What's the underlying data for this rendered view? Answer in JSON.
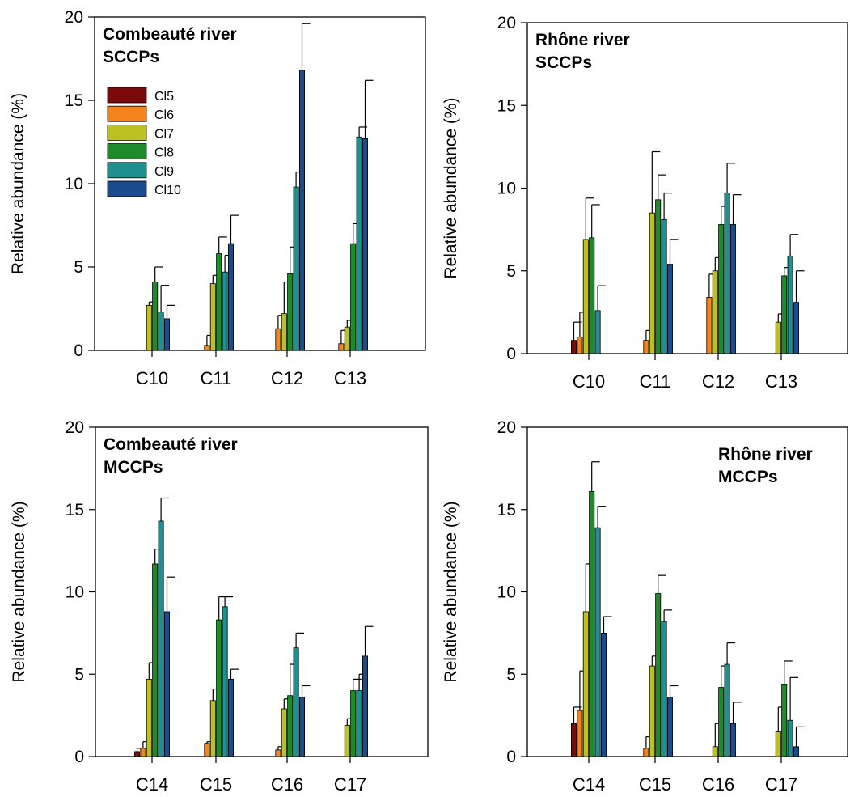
{
  "figure": {
    "legend": [
      {
        "name": "Cl5",
        "color": "#7b0a0a"
      },
      {
        "name": "Cl6",
        "color": "#f5841f"
      },
      {
        "name": "Cl7",
        "color": "#bcc123"
      },
      {
        "name": "Cl8",
        "color": "#1e8b2a"
      },
      {
        "name": "Cl9",
        "color": "#1f8f8f"
      },
      {
        "name": "Cl10",
        "color": "#1a4b8f"
      }
    ]
  },
  "chart_data": [
    {
      "type": "bar",
      "title": "Combeauté river\nSCCPs",
      "title_lines": [
        "Combeauté river",
        "SCCPs"
      ],
      "ylabel": "Relative abundance (%)",
      "xlabel": "",
      "ylim": [
        0,
        20
      ],
      "yticks": [
        "0",
        "5",
        "10",
        "15",
        "20"
      ],
      "legend": "top-left",
      "categories": [
        "C10",
        "C11",
        "C12",
        "C13"
      ],
      "series": [
        {
          "name": "Cl5",
          "values": [
            0,
            0,
            0,
            0
          ],
          "errors": [
            0,
            0,
            0,
            0
          ]
        },
        {
          "name": "Cl6",
          "values": [
            0,
            0.3,
            1.3,
            0.4
          ],
          "errors": [
            0,
            0.6,
            0.8,
            0.8
          ]
        },
        {
          "name": "Cl7",
          "values": [
            2.7,
            4.0,
            2.2,
            1.4
          ],
          "errors": [
            0.2,
            0.5,
            1.9,
            0.4
          ]
        },
        {
          "name": "Cl8",
          "values": [
            4.1,
            5.8,
            4.6,
            6.4
          ],
          "errors": [
            0.9,
            1.0,
            1.6,
            1.2
          ]
        },
        {
          "name": "Cl9",
          "values": [
            2.3,
            4.7,
            9.8,
            12.8
          ],
          "errors": [
            1.6,
            1.0,
            0.9,
            0.6
          ]
        },
        {
          "name": "Cl10",
          "values": [
            1.9,
            6.4,
            16.8,
            12.7
          ],
          "errors": [
            0.8,
            1.7,
            2.8,
            3.5
          ]
        }
      ]
    },
    {
      "type": "bar",
      "title": "Rhône river\nSCCPs",
      "title_lines": [
        "Rhône river",
        "SCCPs"
      ],
      "ylabel": "Relative abundance (%)",
      "xlabel": "",
      "ylim": [
        0,
        20
      ],
      "yticks": [
        "0",
        "5",
        "10",
        "15",
        "20"
      ],
      "categories": [
        "C10",
        "C11",
        "C12",
        "C13"
      ],
      "series": [
        {
          "name": "Cl5",
          "values": [
            0.8,
            0,
            0,
            0
          ],
          "errors": [
            1.1,
            0,
            0,
            0
          ]
        },
        {
          "name": "Cl6",
          "values": [
            1.0,
            0.8,
            3.4,
            0
          ],
          "errors": [
            1.5,
            0.6,
            1.4,
            0
          ]
        },
        {
          "name": "Cl7",
          "values": [
            6.9,
            8.5,
            5.0,
            1.9
          ],
          "errors": [
            2.5,
            3.7,
            0.8,
            0.5
          ]
        },
        {
          "name": "Cl8",
          "values": [
            7.0,
            9.3,
            7.8,
            4.7
          ],
          "errors": [
            2.0,
            1.5,
            1.1,
            0.5
          ]
        },
        {
          "name": "Cl9",
          "values": [
            2.6,
            8.1,
            9.7,
            5.9
          ],
          "errors": [
            1.5,
            1.6,
            1.8,
            1.3
          ]
        },
        {
          "name": "Cl10",
          "values": [
            0,
            5.4,
            7.8,
            3.1
          ],
          "errors": [
            0,
            1.5,
            1.8,
            1.9
          ]
        }
      ]
    },
    {
      "type": "bar",
      "title": "Combeauté river\nMCCPs",
      "title_lines": [
        "Combeauté river",
        "MCCPs"
      ],
      "ylabel": "Relative abundance (%)",
      "xlabel": "",
      "ylim": [
        0,
        20
      ],
      "yticks": [
        "0",
        "5",
        "10",
        "15",
        "20"
      ],
      "categories": [
        "C14",
        "C15",
        "C16",
        "C17"
      ],
      "series": [
        {
          "name": "Cl5",
          "values": [
            0.3,
            0,
            0,
            0
          ],
          "errors": [
            0.2,
            0,
            0,
            0
          ]
        },
        {
          "name": "Cl6",
          "values": [
            0.5,
            0.8,
            0.4,
            0
          ],
          "errors": [
            0.4,
            0.1,
            0.2,
            0
          ]
        },
        {
          "name": "Cl7",
          "values": [
            4.7,
            3.4,
            2.9,
            1.9
          ],
          "errors": [
            1.0,
            0.7,
            0.6,
            0.4
          ]
        },
        {
          "name": "Cl8",
          "values": [
            11.7,
            8.3,
            3.7,
            4.0
          ],
          "errors": [
            0.9,
            1.4,
            1.9,
            0.7
          ]
        },
        {
          "name": "Cl9",
          "values": [
            14.3,
            9.1,
            6.6,
            4.0
          ],
          "errors": [
            1.4,
            0.6,
            0.9,
            1.0
          ]
        },
        {
          "name": "Cl10",
          "values": [
            8.8,
            4.7,
            3.6,
            6.1
          ],
          "errors": [
            2.1,
            0.6,
            0.7,
            1.8
          ]
        }
      ]
    },
    {
      "type": "bar",
      "title": "Rhône river\nMCCPs",
      "title_lines": [
        "Rhône river",
        "MCCPs"
      ],
      "ylabel": "Relative abundance (%)",
      "xlabel": "",
      "ylim": [
        0,
        20
      ],
      "yticks": [
        "0",
        "5",
        "10",
        "15",
        "20"
      ],
      "categories": [
        "C14",
        "C15",
        "C16",
        "C17"
      ],
      "series": [
        {
          "name": "Cl5",
          "values": [
            2.0,
            0,
            0,
            0
          ],
          "errors": [
            1.0,
            0,
            0,
            0
          ]
        },
        {
          "name": "Cl6",
          "values": [
            2.8,
            0.5,
            0,
            0
          ],
          "errors": [
            2.4,
            0.7,
            0,
            0
          ]
        },
        {
          "name": "Cl7",
          "values": [
            8.8,
            5.5,
            0.6,
            1.5
          ],
          "errors": [
            2.9,
            0.6,
            1.4,
            1.5
          ]
        },
        {
          "name": "Cl8",
          "values": [
            16.1,
            9.9,
            4.2,
            4.4
          ],
          "errors": [
            1.8,
            1.1,
            1.3,
            1.4
          ]
        },
        {
          "name": "Cl9",
          "values": [
            13.9,
            8.2,
            5.6,
            2.2
          ],
          "errors": [
            1.3,
            0.7,
            1.3,
            2.6
          ]
        },
        {
          "name": "Cl10",
          "values": [
            7.5,
            3.6,
            2.0,
            0.6
          ],
          "errors": [
            1.0,
            0.7,
            1.3,
            1.2
          ]
        }
      ]
    }
  ]
}
